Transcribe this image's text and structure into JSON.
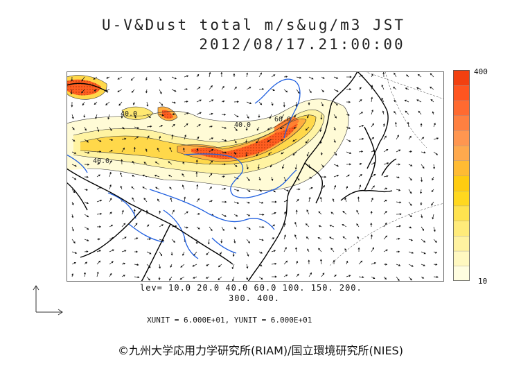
{
  "title_line1": "U-V&Dust total m/s&ug/m3 JST",
  "title_line2": "2012/08/17.21:00:00",
  "colorbar": {
    "max_label": "400",
    "min_label": "10",
    "colors": [
      "#fffde0",
      "#fff8c0",
      "#fff2a0",
      "#ffeb7a",
      "#ffe34f",
      "#ffd81f",
      "#ffcc10",
      "#ffbb33",
      "#ffa94d",
      "#ff9650",
      "#ff8040",
      "#ff6a30",
      "#ff5520",
      "#f24010"
    ]
  },
  "levels_line1": "lev= 10.0 20.0 40.0 60.0 100. 150. 200.",
  "levels_line2": "300. 400.",
  "unit_line": "XUNIT = 6.000E+01, YUNIT = 6.000E+01",
  "credit": "©九州大学応用力学研究所(RIAM)/国立環境研究所(NIES)",
  "contour_labels": [
    "40.0",
    "40.0",
    "40.0",
    "60.0"
  ]
}
